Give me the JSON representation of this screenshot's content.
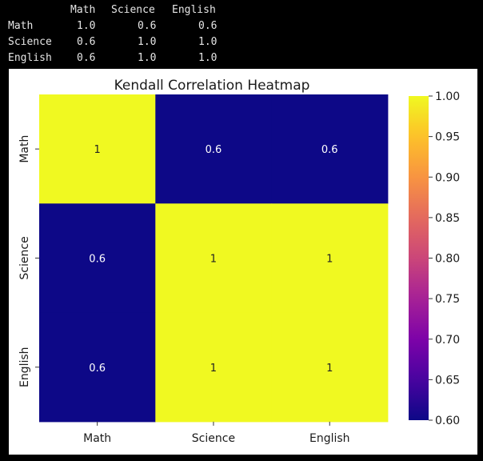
{
  "console": {
    "columns": [
      "Math",
      "Science",
      "English"
    ],
    "rows": [
      {
        "label": "Math",
        "values": [
          "1.0",
          "0.6",
          "0.6"
        ]
      },
      {
        "label": "Science",
        "values": [
          "0.6",
          "1.0",
          "1.0"
        ]
      },
      {
        "label": "English",
        "values": [
          "0.6",
          "1.0",
          "1.0"
        ]
      }
    ]
  },
  "chart_data": {
    "type": "heatmap",
    "title": "Kendall Correlation Heatmap",
    "x_categories": [
      "Math",
      "Science",
      "English"
    ],
    "y_categories": [
      "Math",
      "Science",
      "English"
    ],
    "values": [
      [
        1.0,
        0.6,
        0.6
      ],
      [
        0.6,
        1.0,
        1.0
      ],
      [
        0.6,
        1.0,
        1.0
      ]
    ],
    "annotations": [
      [
        "1",
        "0.6",
        "0.6"
      ],
      [
        "0.6",
        "1",
        "1"
      ],
      [
        "0.6",
        "1",
        "1"
      ]
    ],
    "colormap": "plasma",
    "vmin": 0.6,
    "vmax": 1.0,
    "colorbar_ticks": [
      "0.60",
      "0.65",
      "0.70",
      "0.75",
      "0.80",
      "0.85",
      "0.90",
      "0.95",
      "1.00"
    ],
    "colors": {
      "low": "#0d0887",
      "high": "#f0f921",
      "annotation_light": "#ffffff",
      "annotation_dark": "#222222"
    }
  }
}
